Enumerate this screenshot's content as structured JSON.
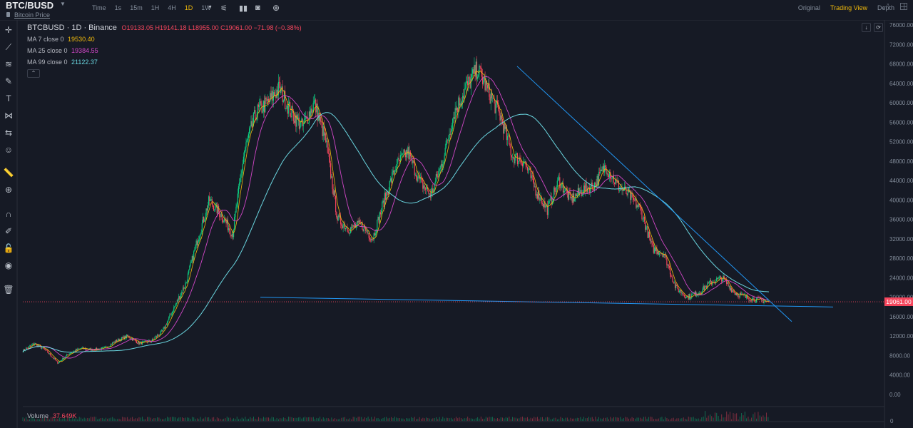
{
  "header": {
    "pair": "BTC/BUSD",
    "subtitle": "Bitcoin Price",
    "intervals": [
      {
        "label": "Time",
        "active": false
      },
      {
        "label": "1s",
        "active": false
      },
      {
        "label": "15m",
        "active": false
      },
      {
        "label": "1H",
        "active": false
      },
      {
        "label": "4H",
        "active": false
      },
      {
        "label": "1D",
        "active": true
      },
      {
        "label": "1W",
        "active": false
      }
    ],
    "views": [
      {
        "label": "Original",
        "active": false
      },
      {
        "label": "Trading View",
        "active": true
      },
      {
        "label": "Depth",
        "active": false
      }
    ]
  },
  "legend": {
    "symbol": "BTCBUSD · 1D · Binance",
    "ohlc": "O19133.05 H19141.18 L18955.00 C19061.00 −71.98 (−0.38%)",
    "ma7_label": "MA 7 close 0",
    "ma7_value": "19530.40",
    "ma25_label": "MA 25 close 0",
    "ma25_value": "19384.55",
    "ma99_label": "MA 99 close 0",
    "ma99_value": "21122.37"
  },
  "volume": {
    "label": "Volume",
    "value": "37.649K",
    "axis_zero": "0"
  },
  "last_price": "19061.00",
  "colors": {
    "up": "#0ecb81",
    "down": "#f6465d",
    "ma7": "#f0b90b",
    "ma25": "#d247c8",
    "ma99": "#6ad6e0",
    "trendline": "#2196f3",
    "accent": "#f0b90b"
  },
  "chart_data": {
    "type": "candlestick",
    "y_ticks": [
      "76000.00",
      "72000.00",
      "68000.00",
      "64000.00",
      "60000.00",
      "56000.00",
      "52000.00",
      "48000.00",
      "44000.00",
      "40000.00",
      "36000.00",
      "32000.00",
      "28000.00",
      "24000.00",
      "20000.00",
      "16000.00",
      "12000.00",
      "8000.00",
      "4000.00",
      "0.00"
    ],
    "ylim": [
      0,
      76000
    ],
    "close_series_approx": [
      9000,
      10500,
      9000,
      6500,
      8500,
      9500,
      9200,
      9500,
      11000,
      12000,
      10500,
      11000,
      13000,
      18000,
      23000,
      32000,
      40000,
      37000,
      33000,
      50000,
      58000,
      60000,
      63000,
      58000,
      55000,
      60000,
      52000,
      36000,
      34000,
      35000,
      32000,
      40000,
      47000,
      50000,
      44000,
      41000,
      48000,
      58000,
      63000,
      67000,
      62000,
      57000,
      49000,
      48000,
      42000,
      38000,
      44000,
      40000,
      42000,
      43000,
      47000,
      43000,
      41000,
      38000,
      30000,
      29000,
      22000,
      20000,
      21000,
      23000,
      24000,
      21000,
      20000,
      19500,
      19061
    ],
    "trendlines": [
      {
        "from": [
          67500,
          "peak-2021-11"
        ],
        "to": [
          15000,
          "end"
        ]
      },
      {
        "from": [
          20000,
          "2020-12"
        ],
        "to": [
          18000,
          "end"
        ]
      }
    ]
  },
  "toolbar_icons": [
    "crosshair-icon",
    "trendline-icon",
    "fib-icon",
    "brush-icon",
    "text-icon",
    "pattern-icon",
    "measure-icon",
    "emoji-icon",
    "ruler-icon",
    "zoom-in-icon",
    "magnet-icon",
    "lock-drawing-icon",
    "lock-icon",
    "eye-icon",
    "trash-icon"
  ]
}
